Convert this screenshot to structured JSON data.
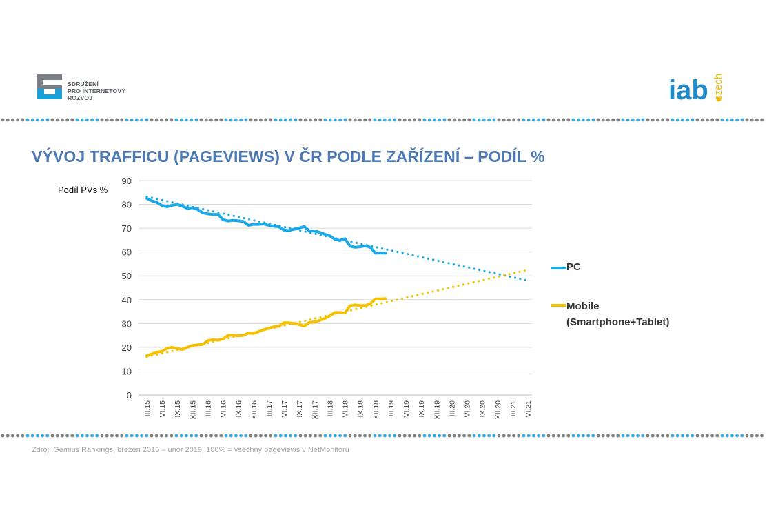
{
  "header": {
    "spir_logo_lines": [
      "SDRUŽENÍ",
      "PRO INTERNETOVÝ",
      "ROZVOJ"
    ],
    "iab_logo_main": "iab",
    "iab_logo_sub": "czech"
  },
  "title": "VÝVOJ TRAFFICU (PAGEVIEWS) V ČR PODLE ZAŘÍZENÍ – PODÍL %",
  "source": "Zdroj: Gemius Rankings,  březen 2015 – únor 2019, 100% = všechny pageviews v NetMonitoru",
  "colors": {
    "title": "#4b7ab5",
    "pc": "#1aa9e6",
    "mobile": "#f5c000",
    "grid": "#d9d9d9",
    "dot_grey": "#7f7f7f",
    "dot_blue": "#38a8dc"
  },
  "chart_data": {
    "type": "line",
    "ylabel": "Podíl PVs %",
    "ylim": [
      0,
      90
    ],
    "yticks": [
      0,
      10,
      20,
      30,
      40,
      50,
      60,
      70,
      80,
      90
    ],
    "xticks": [
      "III.15",
      "VI.15",
      "IX.15",
      "XII.15",
      "III.16",
      "VI.16",
      "IX.16",
      "XII.16",
      "III.17",
      "VI.17",
      "IX.17",
      "XII.17",
      "III.18",
      "VI.18",
      "IX.18",
      "XII.18",
      "III.19",
      "VI.19",
      "IX.19",
      "XII.19",
      "III.20",
      "VI.20",
      "IX.20",
      "XII.20",
      "III.21",
      "VI.21"
    ],
    "grid": true,
    "legend_position": "right",
    "series": [
      {
        "name": "PC",
        "values": [
          82.5,
          81.5,
          80.8,
          79.5,
          79,
          79.6,
          80,
          79.2,
          78.3,
          78.6,
          77.9,
          76.5,
          76,
          75.8,
          75.8,
          73.6,
          73,
          73.3,
          73.1,
          72.8,
          71.2,
          71.6,
          71.6,
          71.8,
          71.2,
          70.8,
          70.6,
          69.2,
          69,
          69.6,
          70.1,
          70.7,
          68.8,
          68.8,
          68.3,
          67.5,
          66.8,
          65.4,
          64.8,
          65.6,
          62.5,
          62,
          62.2,
          62.6,
          62,
          59.5,
          59.6,
          59.5
        ]
      },
      {
        "name": "Mobile\n(Smartphone+Tablet)",
        "values": [
          16.4,
          17.2,
          18,
          18.3,
          19.6,
          20,
          19.5,
          19,
          20,
          20.8,
          21,
          21.2,
          22.8,
          23.2,
          23,
          23.5,
          25,
          25.1,
          24.8,
          25,
          26,
          25.8,
          26.6,
          27.4,
          28,
          28.6,
          28.9,
          30.3,
          30.3,
          30,
          29.5,
          28.9,
          30.5,
          30.6,
          31.3,
          32.1,
          33.2,
          34.6,
          34.6,
          34.4,
          37.4,
          37.8,
          37.5,
          37.5,
          38.3,
          40.3,
          40.3,
          40.4
        ]
      }
    ],
    "trendlines": [
      {
        "series": "PC",
        "from": [
          0,
          83.2
        ],
        "to": [
          75,
          48.0
        ]
      },
      {
        "series": "Mobile\n(Smartphone+Tablet)",
        "from": [
          0,
          16.0
        ],
        "to": [
          75,
          52.5
        ]
      }
    ]
  }
}
